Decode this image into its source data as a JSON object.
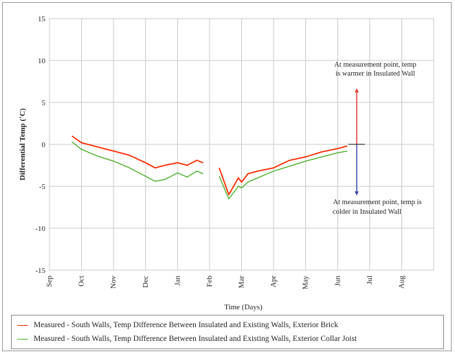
{
  "chart_data": {
    "type": "line",
    "xlabel": "Time (Days)",
    "ylabel": "Differential Temp (˚C)",
    "ylim": [
      -15,
      15
    ],
    "yticks": [
      15,
      10,
      5,
      0,
      -5,
      -10,
      -15
    ],
    "categories": [
      "Sep",
      "Oct",
      "Nov",
      "Dec",
      "Jan",
      "Feb",
      "Mar",
      "Apr",
      "May",
      "Jun",
      "Jul",
      "Aug"
    ],
    "grid": true,
    "series": [
      {
        "name": "Measured - South Walls, Temp Difference Between Insulated and Existing Walls, Exterior Brick",
        "color": "#ff2a00",
        "x": [
          0.7,
          1.0,
          1.5,
          2.0,
          2.5,
          3.0,
          3.3,
          3.6,
          4.0,
          4.3,
          4.6,
          4.8,
          5.0,
          5.3,
          5.6,
          5.9,
          6.0,
          6.2,
          6.5,
          7.0,
          7.5,
          8.0,
          8.5,
          9.0,
          9.3
        ],
        "values": [
          1.0,
          0.2,
          -0.3,
          -0.8,
          -1.3,
          -2.2,
          -2.8,
          -2.5,
          -2.2,
          -2.5,
          -1.9,
          -2.2,
          null,
          -2.8,
          -6.0,
          -4.0,
          -4.5,
          -3.5,
          -3.2,
          -2.8,
          -1.9,
          -1.5,
          -0.9,
          -0.5,
          -0.2
        ]
      },
      {
        "name": "Measured - South Walls, Temp Difference Between Insulated and Existing Walls, Exterior Collar Joist",
        "color": "#4caf2a",
        "x": [
          0.7,
          1.0,
          1.5,
          2.0,
          2.5,
          3.0,
          3.3,
          3.6,
          4.0,
          4.3,
          4.6,
          4.8,
          5.0,
          5.3,
          5.6,
          5.9,
          6.0,
          6.2,
          6.5,
          7.0,
          7.5,
          8.0,
          8.5,
          9.0,
          9.3
        ],
        "values": [
          0.3,
          -0.6,
          -1.4,
          -2.0,
          -2.8,
          -3.8,
          -4.4,
          -4.2,
          -3.4,
          -3.9,
          -3.2,
          -3.5,
          null,
          -3.8,
          -6.5,
          -5.0,
          -5.2,
          -4.5,
          -4.0,
          -3.2,
          -2.6,
          -2.0,
          -1.5,
          -1.0,
          -0.8
        ]
      }
    ],
    "annotations": {
      "warm_text_1": "At measurement point, temp",
      "warm_text_2": "is warmer in Insulated Wall",
      "cold_text_1": "At measurement point, temp is",
      "cold_text_2": "colder in Insulated Wall",
      "warm_arrow_color": "#e53935",
      "cold_arrow_color": "#3949ab"
    }
  }
}
